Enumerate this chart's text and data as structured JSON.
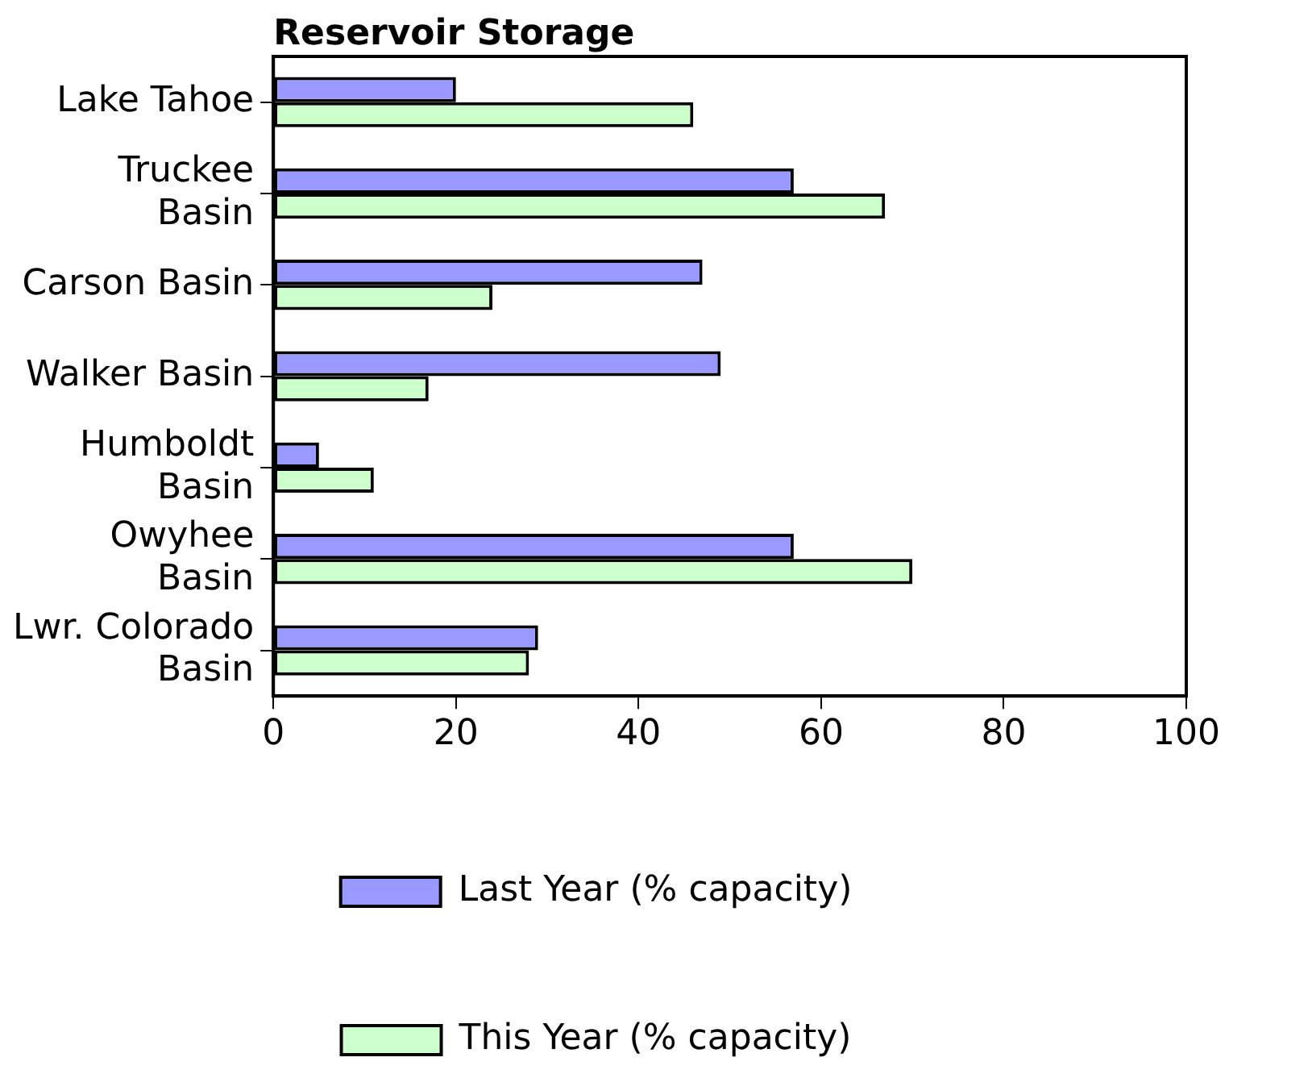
{
  "chart_data": {
    "type": "bar",
    "orientation": "horizontal",
    "title": "Reservoir Storage",
    "categories": [
      "Lake Tahoe",
      "Truckee\nBasin",
      "Carson Basin",
      "Walker Basin",
      "Humboldt\nBasin",
      "Owyhee\nBasin",
      "Lwr. Colorado\nBasin"
    ],
    "series": [
      {
        "name": "Last Year (% capacity)",
        "color": "#9999ff",
        "values": [
          20,
          57,
          47,
          49,
          5,
          57,
          29
        ]
      },
      {
        "name": "This Year (% capacity)",
        "color": "#ccffcc",
        "values": [
          46,
          67,
          24,
          17,
          11,
          70,
          28
        ]
      }
    ],
    "xlim": [
      0,
      100
    ],
    "xticks": [
      0,
      20,
      40,
      60,
      80,
      100
    ],
    "grid": false,
    "legend": "bottom"
  }
}
